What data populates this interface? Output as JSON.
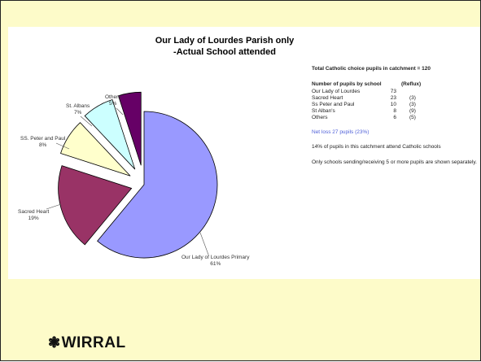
{
  "chart_data": {
    "type": "pie",
    "title": [
      "Our Lady of Lourdes Parish only",
      "-Actual School attended"
    ],
    "slices": [
      {
        "label": "Our Lady of Lourdes  Primary",
        "percent": "61%",
        "value": 61,
        "color": "#9999ff"
      },
      {
        "label": "Sacred Heart",
        "percent": "19%",
        "value": 19,
        "color": "#993366"
      },
      {
        "label": "SS. Peter and Paul",
        "percent": "8%",
        "value": 8,
        "color": "#ffffcc"
      },
      {
        "label": "St. Albans",
        "percent": "7%",
        "value": 7,
        "color": "#ccffff"
      },
      {
        "label": "Others",
        "percent": "5%",
        "value": 5,
        "color": "#660066"
      }
    ]
  },
  "info": {
    "total": "Total Catholic choice pupils in catchment = 120",
    "header_school": "Number of pupils by school",
    "header_reflux": "(Reflux)",
    "rows": [
      {
        "school": "Our Lady of Lourdes",
        "pupils": "73",
        "reflux": ""
      },
      {
        "school": "Sacred Heart",
        "pupils": "23",
        "reflux": "(3)"
      },
      {
        "school": "Ss Peter and Paul",
        "pupils": "10",
        "reflux": "(3)"
      },
      {
        "school": "St Alban's",
        "pupils": "8",
        "reflux": "(9)"
      },
      {
        "school": "Others",
        "pupils": "6",
        "reflux": "(5)"
      }
    ],
    "net_loss": "Net loss 27 pupils (23%)",
    "note1": "14% of pupils in this catchment attend Catholic schools",
    "note2": "Only schools sending/receiving 5 or more pupils are shown separately."
  },
  "logo": {
    "mark": "❃",
    "text": "WIRRAL"
  }
}
